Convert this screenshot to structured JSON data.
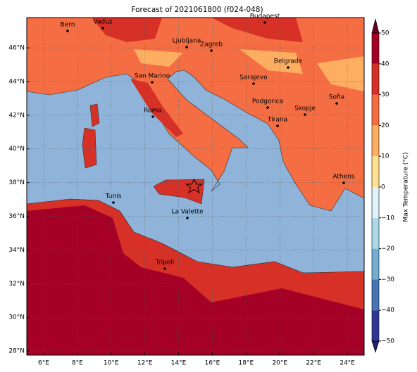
{
  "title": "Forecast of 2021061800 (f024-048)",
  "xticks": [
    {
      "value": 6,
      "label": "6°E"
    },
    {
      "value": 8,
      "label": "8°E"
    },
    {
      "value": 10,
      "label": "10°E"
    },
    {
      "value": 12,
      "label": "12°E"
    },
    {
      "value": 14,
      "label": "14°E"
    },
    {
      "value": 16,
      "label": "16°E"
    },
    {
      "value": 18,
      "label": "18°E"
    },
    {
      "value": 20,
      "label": "20°E"
    },
    {
      "value": 22,
      "label": "22°E"
    },
    {
      "value": 24,
      "label": "24°E"
    }
  ],
  "yticks": [
    {
      "value": 28,
      "label": "28°N"
    },
    {
      "value": 30,
      "label": "30°N"
    },
    {
      "value": 32,
      "label": "32°N"
    },
    {
      "value": 34,
      "label": "34°N"
    },
    {
      "value": 36,
      "label": "36°N"
    },
    {
      "value": 38,
      "label": "38°N"
    },
    {
      "value": 40,
      "label": "40°N"
    },
    {
      "value": 42,
      "label": "42°N"
    },
    {
      "value": 44,
      "label": "44°N"
    },
    {
      "value": 46,
      "label": "46°N"
    }
  ],
  "xlim": [
    5,
    25
  ],
  "ylim": [
    27.75,
    47.8
  ],
  "cities": [
    "Bern",
    "Vaduz",
    "Budapest",
    "Ljubljana",
    "Zagreb",
    "San Marino",
    "Belgrade",
    "Sarajevo",
    "Roma",
    "Podgorica",
    "Sofia",
    "Skopje",
    "Tirana",
    "Athens",
    "Tunis",
    "La Valette",
    "Tripoli"
  ],
  "colorbar": {
    "label": "Max Temperature (°C)",
    "lim": [
      -50,
      50
    ],
    "ticks": [
      {
        "value": -50,
        "label": "−50"
      },
      {
        "value": -40,
        "label": "−40"
      },
      {
        "value": -30,
        "label": "−30"
      },
      {
        "value": -20,
        "label": "−20"
      },
      {
        "value": -10,
        "label": "−10"
      },
      0,
      10,
      20,
      30,
      40,
      50
    ],
    "colors": [
      "#313695",
      "#4575b4",
      "#74add1",
      "#abd9e9",
      "#e0f3f8",
      "#fee090",
      "#fdae61",
      "#f46d43",
      "#d73027",
      "#a50026"
    ],
    "extend_colors": [
      "#1f1f6b",
      "#67001f"
    ]
  }
}
